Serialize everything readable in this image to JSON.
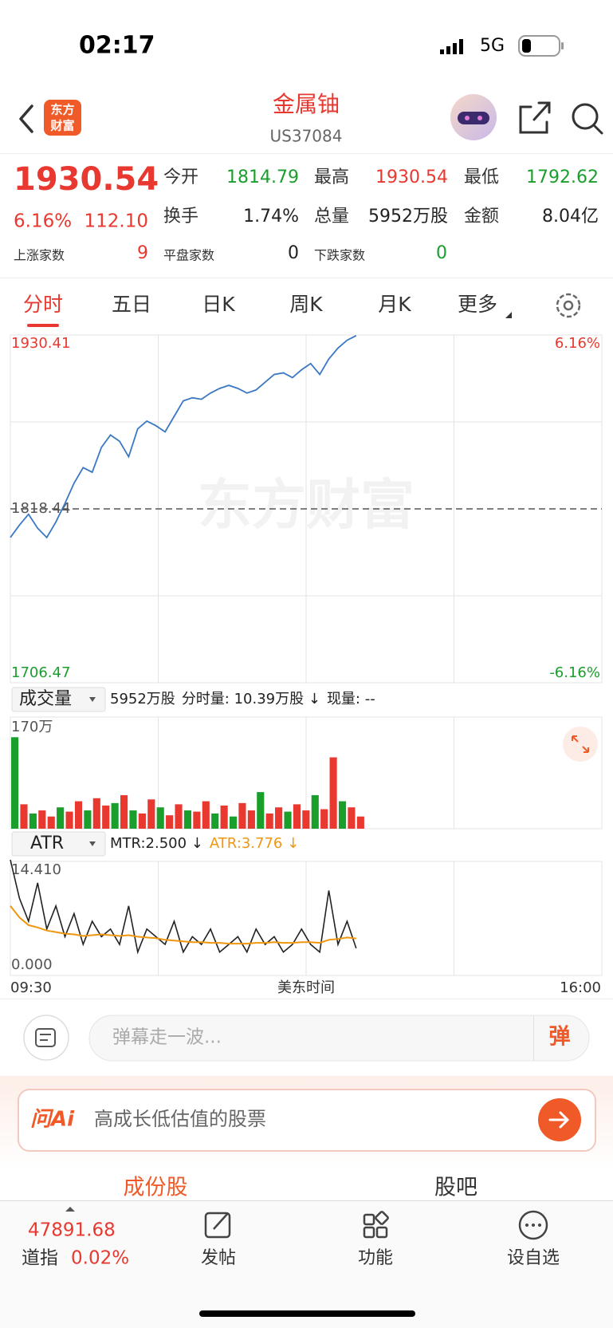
{
  "status_bar": {
    "time": "02:17",
    "network": "5G"
  },
  "header": {
    "logo": [
      "东方",
      "财富"
    ],
    "title": "金属铀",
    "code": "US37084"
  },
  "quote": {
    "price": "1930.54",
    "change_pct": "6.16%",
    "change": "112.10",
    "stats": [
      {
        "label": "今开",
        "value": "1814.79",
        "color": "#1a9e2c"
      },
      {
        "label": "最高",
        "value": "1930.54",
        "color": "#e8382f"
      },
      {
        "label": "最低",
        "value": "1792.62",
        "color": "#1a9e2c"
      },
      {
        "label": "换手",
        "value": "1.74%",
        "color": "#222222"
      },
      {
        "label": "总量",
        "value": "5952万股",
        "color": "#222222"
      },
      {
        "label": "金额",
        "value": "8.04亿",
        "color": "#222222"
      }
    ],
    "breadth": [
      {
        "label": "上涨家数",
        "value": "9",
        "color": "#e8382f"
      },
      {
        "label": "平盘家数",
        "value": "0",
        "color": "#222222"
      },
      {
        "label": "下跌家数",
        "value": "0",
        "color": "#1a9e2c"
      }
    ]
  },
  "tabs": [
    "分时",
    "五日",
    "日K",
    "周K",
    "月K",
    "更多"
  ],
  "chart_data": [
    {
      "type": "line",
      "watermark": "东方财富",
      "color": "#3a78c3",
      "x": [
        0,
        6,
        12,
        18,
        24,
        30,
        36,
        42,
        48,
        54,
        60,
        66,
        72,
        78,
        84,
        90,
        96,
        102,
        108,
        114,
        120,
        126,
        132,
        138,
        144,
        150,
        156,
        162,
        168,
        174,
        180,
        186,
        192,
        198,
        204,
        210,
        216,
        222,
        228
      ],
      "values": [
        1800,
        1808,
        1815,
        1806,
        1800,
        1810,
        1822,
        1835,
        1845,
        1842,
        1858,
        1866,
        1862,
        1852,
        1870,
        1875,
        1872,
        1868,
        1878,
        1888,
        1890,
        1889,
        1893,
        1896,
        1898,
        1896,
        1893,
        1895,
        1900,
        1905,
        1906,
        1903,
        1908,
        1912,
        1905,
        1915,
        1922,
        1927,
        1930
      ],
      "xlim": [
        0,
        390
      ],
      "ylim": [
        1706.47,
        1930.41
      ],
      "yticks": [
        1930.41,
        1818.44,
        1706.47
      ],
      "y2lim": [
        -6.16,
        6.16
      ],
      "y2ticks": [
        {
          "value": 6.16,
          "label": "6.16%"
        },
        {
          "value": -6.16,
          "label": "-6.16%"
        }
      ],
      "grid": true
    },
    {
      "type": "bar",
      "selector": "成交量",
      "info": [
        "5952万股",
        "分时量: 10.39万股 ↓",
        "现量: --"
      ],
      "x": [
        0,
        6,
        12,
        18,
        24,
        30,
        36,
        42,
        48,
        54,
        60,
        66,
        72,
        78,
        84,
        90,
        96,
        102,
        108,
        114,
        120,
        126,
        132,
        138,
        144,
        150,
        156,
        162,
        168,
        174,
        180,
        186,
        192,
        198,
        204,
        210,
        216,
        222,
        228
      ],
      "values": [
        150,
        40,
        25,
        30,
        20,
        35,
        28,
        45,
        30,
        50,
        38,
        42,
        55,
        30,
        25,
        48,
        35,
        22,
        40,
        30,
        28,
        45,
        25,
        38,
        20,
        42,
        30,
        60,
        25,
        35,
        28,
        40,
        30,
        55,
        32,
        117,
        45,
        35,
        20
      ],
      "colors": [
        "#1a9e2c",
        "#e8382f",
        "#1a9e2c",
        "#e8382f",
        "#e8382f",
        "#1a9e2c",
        "#e8382f",
        "#e8382f",
        "#1a9e2c",
        "#e8382f",
        "#e8382f",
        "#1a9e2c",
        "#e8382f",
        "#1a9e2c",
        "#e8382f",
        "#e8382f",
        "#1a9e2c",
        "#e8382f",
        "#e8382f",
        "#1a9e2c",
        "#e8382f",
        "#e8382f",
        "#1a9e2c",
        "#e8382f",
        "#1a9e2c",
        "#e8382f",
        "#e8382f",
        "#1a9e2c",
        "#e8382f",
        "#e8382f",
        "#1a9e2c",
        "#e8382f",
        "#e8382f",
        "#1a9e2c",
        "#e8382f",
        "#e8382f",
        "#1a9e2c",
        "#e8382f",
        "#e8382f"
      ],
      "xlim": [
        0,
        390
      ],
      "ylim": [
        0,
        170
      ],
      "yticks": [
        {
          "value": 170,
          "label": "170万"
        }
      ],
      "grid": true
    },
    {
      "type": "line",
      "selector": "ATR",
      "x": [
        0,
        6,
        12,
        18,
        24,
        30,
        36,
        42,
        48,
        54,
        60,
        66,
        72,
        78,
        84,
        90,
        96,
        102,
        108,
        114,
        120,
        126,
        132,
        138,
        144,
        150,
        156,
        162,
        168,
        174,
        180,
        186,
        192,
        198,
        204,
        210,
        216,
        222,
        228
      ],
      "series": [
        {
          "name": "MTR:2.500 ↓",
          "color": "#222222",
          "values": [
            14,
            9,
            6,
            11,
            5,
            8,
            4,
            7,
            3,
            6,
            4,
            5,
            3,
            8,
            2,
            5,
            4,
            3,
            6,
            2,
            4,
            3,
            5,
            2,
            3,
            4,
            2,
            5,
            3,
            4,
            2,
            3,
            5,
            3,
            2,
            10,
            3,
            6,
            2.5
          ]
        },
        {
          "name": "ATR:3.776 ↓",
          "color": "#f0960f",
          "values": [
            8,
            6.5,
            5.5,
            5.2,
            4.8,
            4.6,
            4.4,
            4.3,
            4.1,
            4.2,
            4.3,
            4.2,
            4.1,
            4.2,
            4.0,
            3.9,
            3.8,
            3.6,
            3.5,
            3.4,
            3.3,
            3.3,
            3.2,
            3.2,
            3.1,
            3.1,
            3.1,
            3.2,
            3.2,
            3.3,
            3.2,
            3.2,
            3.3,
            3.3,
            3.2,
            3.6,
            3.7,
            3.9,
            3.776
          ]
        }
      ],
      "xlim": [
        0,
        390
      ],
      "ylim": [
        0,
        14.41
      ],
      "yticks": [
        {
          "value": 14.41,
          "label": "14.410"
        },
        {
          "value": 0,
          "label": "0.000"
        }
      ],
      "xticks": [
        {
          "value": 0,
          "label": "09:30"
        },
        {
          "value": 390,
          "label": "16:00"
        }
      ],
      "xlabel": "美东时间",
      "grid": true
    }
  ],
  "comment": {
    "placeholder": "弹幕走一波...",
    "button": "弹"
  },
  "ai": {
    "brand": "问Ai",
    "prompt": "高成长低估值的股票"
  },
  "sections": [
    "成份股",
    "股吧"
  ],
  "footer": {
    "index_value": "47891.68",
    "index_name": "道指",
    "index_change": "0.02%",
    "nav": [
      "发帖",
      "功能",
      "设自选"
    ]
  }
}
